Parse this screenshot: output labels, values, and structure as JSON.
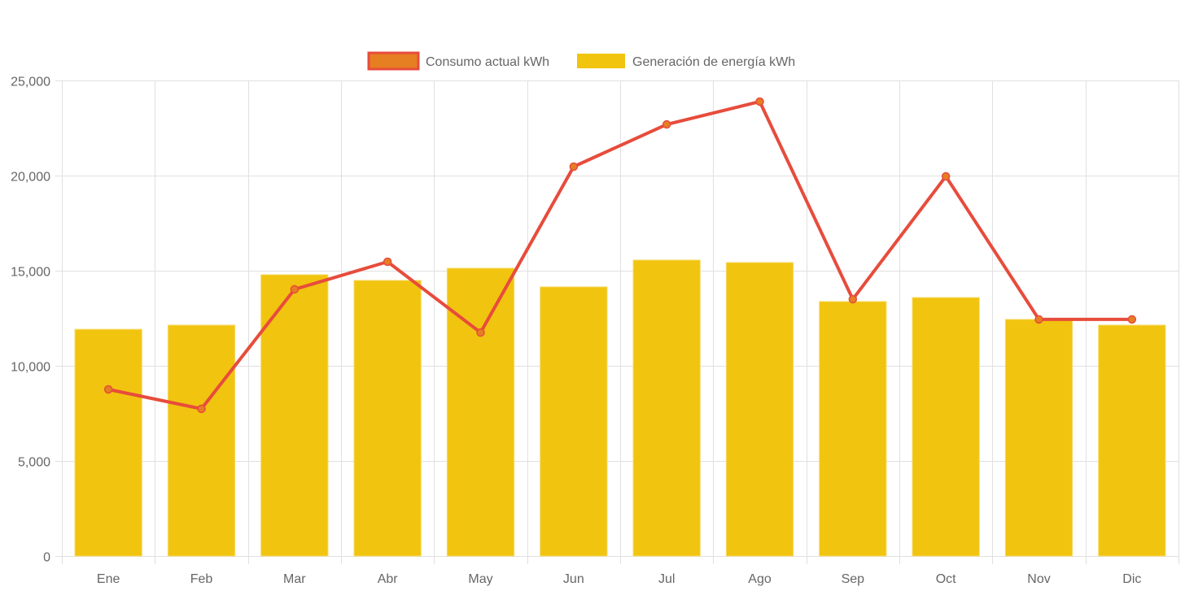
{
  "chart_data": {
    "type": "bar",
    "title": "",
    "xlabel": "",
    "ylabel": "",
    "ylim": [
      0,
      25000
    ],
    "yticks": [
      0,
      5000,
      10000,
      15000,
      20000,
      25000
    ],
    "ytick_labels": [
      "0",
      "5,000",
      "10,000",
      "15,000",
      "20,000",
      "25,000"
    ],
    "grid": true,
    "legend_position": "top-center",
    "categories": [
      "Ene",
      "Feb",
      "Mar",
      "Abr",
      "May",
      "Jun",
      "Jul",
      "Ago",
      "Sep",
      "Oct",
      "Nov",
      "Dic"
    ],
    "series": [
      {
        "name": "Consumo actual kWh",
        "type": "line",
        "color": "#e74c3c",
        "point_color": "#e67e22",
        "values": [
          8760,
          7740,
          14020,
          15470,
          11750,
          20470,
          22690,
          23890,
          13500,
          19960,
          12440,
          12440
        ]
      },
      {
        "name": "Generación de energía kWh",
        "type": "bar",
        "color": "#f1c40f",
        "values": [
          11920,
          12140,
          14790,
          14490,
          15130,
          14150,
          15560,
          15430,
          13380,
          13590,
          12440,
          12140
        ]
      }
    ]
  },
  "colors": {
    "grid": "#e0e0e0",
    "axis_text": "#666666"
  }
}
